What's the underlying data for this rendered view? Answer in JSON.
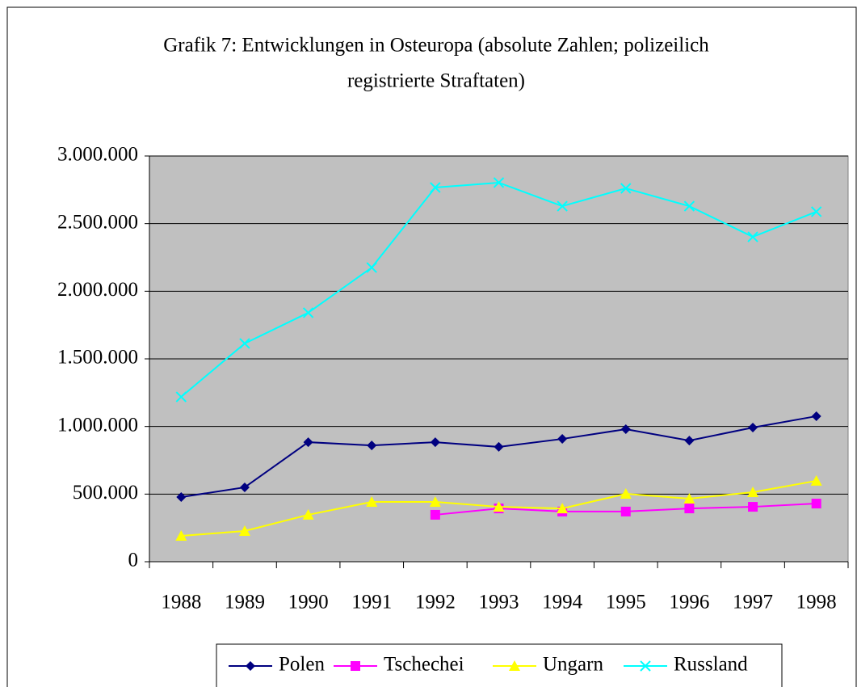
{
  "chart_data": {
    "type": "line",
    "title": [
      "Grafik 7: Entwicklungen in Osteuropa (absolute Zahlen; polizeilich",
      "registrierte Straftaten)"
    ],
    "categories": [
      "1988",
      "1989",
      "1990",
      "1991",
      "1992",
      "1993",
      "1994",
      "1995",
      "1996",
      "1997",
      "1998"
    ],
    "series": [
      {
        "name": "Polen",
        "color": "#000080",
        "marker": "diamond",
        "values": [
          478000,
          550000,
          884000,
          860000,
          884000,
          849000,
          908000,
          980000,
          896000,
          992000,
          1076000
        ]
      },
      {
        "name": "Tschechei",
        "color": "#ff00ff",
        "marker": "square",
        "values": [
          null,
          null,
          null,
          null,
          347000,
          394000,
          371000,
          371000,
          394000,
          406000,
          430000
        ]
      },
      {
        "name": "Ungarn",
        "color": "#ffff00",
        "marker": "triangle",
        "values": [
          191000,
          227000,
          347000,
          442000,
          442000,
          406000,
          394000,
          502000,
          466000,
          514000,
          598000
        ]
      },
      {
        "name": "Russland",
        "color": "#00ffff",
        "marker": "x",
        "values": [
          1219000,
          1614000,
          1841000,
          2175000,
          2767000,
          2803000,
          2629000,
          2761000,
          2629000,
          2402000,
          2588000
        ]
      }
    ],
    "ylim": [
      0,
      3000000
    ],
    "yticks": [
      0,
      {
        "value": 500000,
        "label": "500.000"
      },
      {
        "value": 1000000,
        "label": "1.000.000"
      },
      {
        "value": 1500000,
        "label": "1.500.000"
      },
      {
        "value": 2000000,
        "label": "2.000.000"
      },
      {
        "value": 2500000,
        "label": "2.500.000"
      },
      {
        "value": 3000000,
        "label": "3.000.000"
      }
    ],
    "grid": true,
    "plot_background": "#c0c0c0",
    "legend": "bottom"
  }
}
